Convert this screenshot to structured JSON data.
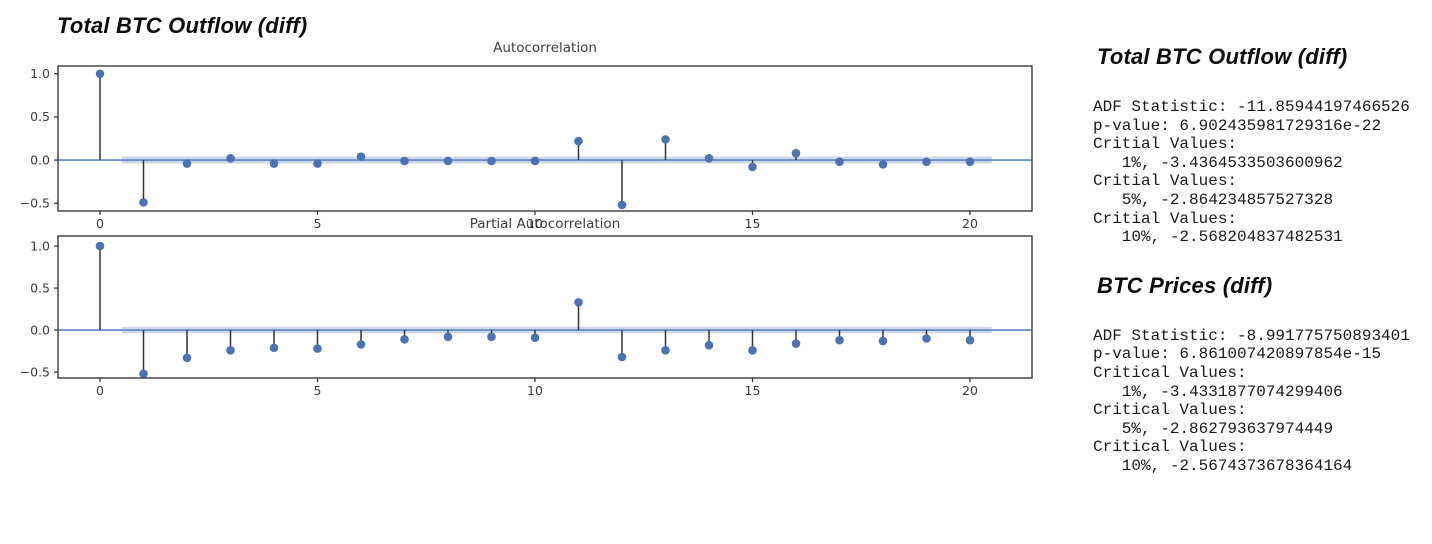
{
  "page": {
    "title": "Total BTC Outflow (diff)"
  },
  "colors": {
    "marker": "#4c72b0",
    "stem": "#343434",
    "zero_line": "#5b84c4",
    "conf_band": "rgba(76,114,176,0.28)",
    "axis_frame": "#2b2b2b",
    "tick_label": "#3d3d3d",
    "chart_title": "#3d3d3d"
  },
  "chart_data": [
    {
      "type": "stem",
      "title": "Autocorrelation",
      "xlabel": "",
      "ylabel": "",
      "x": [
        0,
        1,
        2,
        3,
        4,
        5,
        6,
        7,
        8,
        9,
        10,
        11,
        12,
        13,
        14,
        15,
        16,
        17,
        18,
        19,
        20
      ],
      "values": [
        1.0,
        -0.49,
        -0.04,
        0.02,
        -0.04,
        -0.04,
        0.04,
        -0.01,
        -0.01,
        -0.01,
        -0.01,
        0.22,
        -0.52,
        0.24,
        0.02,
        -0.08,
        0.08,
        -0.02,
        -0.05,
        -0.02,
        -0.02
      ],
      "xticks": [
        0,
        5,
        10,
        15,
        20
      ],
      "yticks": [
        1.0,
        0.5,
        0.0,
        -0.5
      ],
      "xlim": [
        -0.97,
        21.4
      ],
      "ylim": [
        -0.59,
        1.09
      ],
      "conf_band_halfwidth": 0.04,
      "conf_band_lag_range": [
        0.5,
        20.5
      ],
      "zero_line": true,
      "grid": false,
      "legend": null
    },
    {
      "type": "stem",
      "title": "Partial Autocorrelation",
      "xlabel": "",
      "ylabel": "",
      "x": [
        0,
        1,
        2,
        3,
        4,
        5,
        6,
        7,
        8,
        9,
        10,
        11,
        12,
        13,
        14,
        15,
        16,
        17,
        18,
        19,
        20
      ],
      "values": [
        1.0,
        -0.52,
        -0.33,
        -0.24,
        -0.21,
        -0.22,
        -0.17,
        -0.11,
        -0.08,
        -0.08,
        -0.09,
        0.33,
        -0.32,
        -0.24,
        -0.18,
        -0.24,
        -0.16,
        -0.12,
        -0.13,
        -0.1,
        -0.12
      ],
      "xticks": [
        0,
        5,
        10,
        15,
        20
      ],
      "yticks": [
        1.0,
        0.5,
        0.0,
        -0.5
      ],
      "xlim": [
        -0.97,
        21.4
      ],
      "ylim": [
        -0.57,
        1.12
      ],
      "conf_band_halfwidth": 0.04,
      "conf_band_lag_range": [
        0.5,
        20.5
      ],
      "zero_line": true,
      "grid": false,
      "legend": null
    }
  ],
  "stats_panel": {
    "sections": [
      {
        "heading": "Total BTC Outflow (diff)",
        "lines": [
          "ADF Statistic: -11.85944197466526",
          "p-value: 6.902435981729316e-22",
          "Critial Values:",
          "   1%, -3.4364533503600962",
          "Critial Values:",
          "   5%, -2.864234857527328",
          "Critial Values:",
          "   10%, -2.568204837482531"
        ]
      },
      {
        "heading": "BTC Prices (diff)",
        "lines": [
          "ADF Statistic: -8.991775750893401",
          "p-value: 6.861007420897854e-15",
          "Critical Values:",
          "   1%, -3.4331877074299406",
          "Critical Values:",
          "   5%, -2.862793637974449",
          "Critical Values:",
          "   10%, -2.5674373678364164"
        ]
      }
    ]
  }
}
